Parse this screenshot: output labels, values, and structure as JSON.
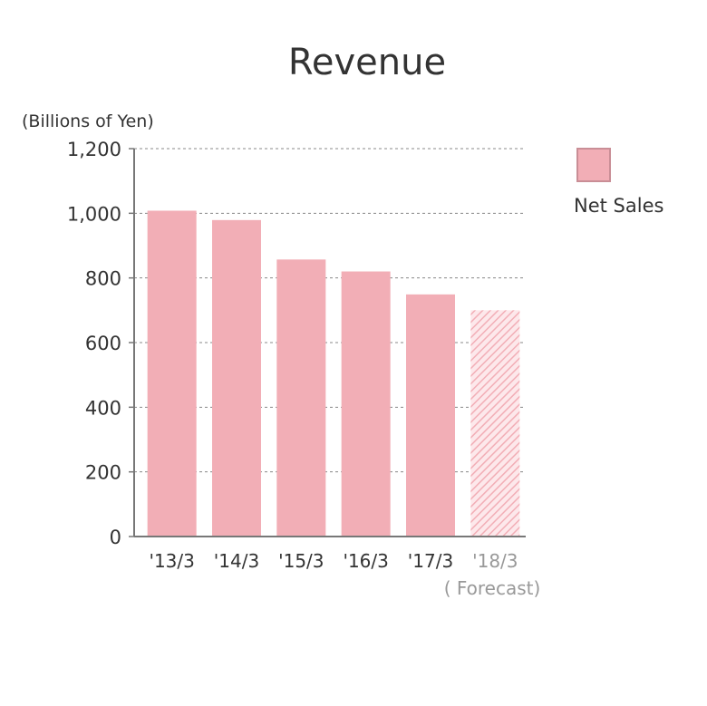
{
  "chart_data": {
    "type": "bar",
    "title": "Revenue",
    "ylabel": "(Billions of Yen)",
    "xlabel": "",
    "ylim": [
      0,
      1200
    ],
    "yticks": [
      0,
      200,
      400,
      600,
      800,
      1000,
      1200
    ],
    "ytick_labels": [
      "0",
      "200",
      "400",
      "600",
      "800",
      "1,000",
      "1,200"
    ],
    "categories": [
      "'13/3",
      "'14/3",
      "'15/3",
      "'16/3",
      "'17/3",
      "'18/3"
    ],
    "forecast_note": "( Forecast)",
    "series": [
      {
        "name": "Net Sales",
        "values": [
          1008,
          979,
          857,
          820,
          749,
          700
        ],
        "forecast": [
          false,
          false,
          false,
          false,
          false,
          true
        ]
      }
    ],
    "grid": true,
    "legend_position": "right",
    "colors": {
      "bar": "#f2aeb6",
      "bar_shadow": "#c98e96",
      "forecast_hatch": "#f6c2c8",
      "grid": "#888888",
      "axis": "#777777"
    }
  }
}
